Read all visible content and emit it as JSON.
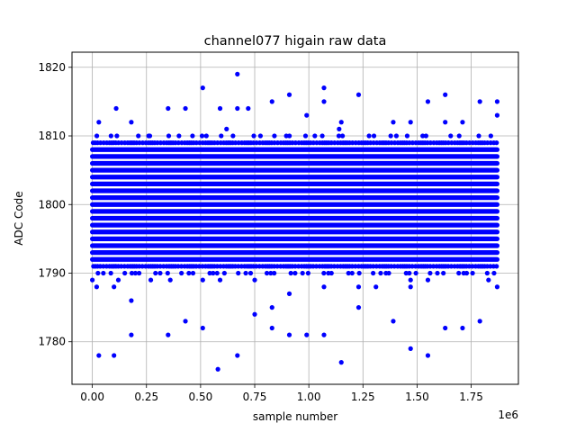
{
  "chart_data": {
    "type": "scatter",
    "title": "channel077 higain raw data",
    "xlabel": "sample number",
    "ylabel": "ADC Code",
    "x_offset_text": "1e6",
    "xlim": [
      -0.094,
      1.968
    ],
    "ylim": [
      1773.8,
      1822.2
    ],
    "x_scale_factor": 1000000,
    "xticks": [
      0.0,
      0.25,
      0.5,
      0.75,
      1.0,
      1.25,
      1.5,
      1.75
    ],
    "xtick_labels": [
      "0.00",
      "0.25",
      "0.50",
      "0.75",
      "1.00",
      "1.25",
      "1.50",
      "1.75"
    ],
    "yticks": [
      1780,
      1790,
      1800,
      1810,
      1820
    ],
    "ytick_labels": [
      "1780",
      "1790",
      "1800",
      "1810",
      "1820"
    ],
    "grid": true,
    "marker_color": "#0000ff",
    "dense_band": {
      "x_range": [
        0.0,
        1.87
      ],
      "y_range": [
        1792,
        1808
      ]
    },
    "sparse_rows": [
      {
        "y": 1809,
        "x_range": [
          0.0,
          1.87
        ]
      },
      {
        "y": 1791,
        "x_range": [
          0.0,
          1.87
        ]
      },
      {
        "y": 1790,
        "x_range": [
          0.0,
          1.87
        ]
      },
      {
        "y": 1810,
        "x_range": [
          0.0,
          1.87
        ]
      }
    ],
    "series": [
      {
        "values": [
          [
            0.03,
            1812
          ],
          [
            0.11,
            1814
          ],
          [
            0.18,
            1812
          ],
          [
            0.35,
            1814
          ],
          [
            0.43,
            1814
          ],
          [
            0.51,
            1817
          ],
          [
            0.59,
            1814
          ],
          [
            0.67,
            1819
          ],
          [
            0.67,
            1814
          ],
          [
            0.72,
            1814
          ],
          [
            0.83,
            1815
          ],
          [
            0.91,
            1816
          ],
          [
            0.99,
            1813
          ],
          [
            1.07,
            1817
          ],
          [
            1.07,
            1815
          ],
          [
            1.15,
            1812
          ],
          [
            1.23,
            1816
          ],
          [
            1.39,
            1812
          ],
          [
            1.47,
            1812
          ],
          [
            1.55,
            1815
          ],
          [
            1.63,
            1816
          ],
          [
            1.63,
            1812
          ],
          [
            1.71,
            1812
          ],
          [
            1.79,
            1815
          ],
          [
            1.87,
            1815
          ],
          [
            1.87,
            1813
          ],
          [
            0.26,
            1810
          ],
          [
            0.62,
            1811
          ],
          [
            1.14,
            1811
          ],
          [
            0.0,
            1789
          ],
          [
            0.02,
            1788
          ],
          [
            0.1,
            1788
          ],
          [
            0.12,
            1789
          ],
          [
            0.18,
            1786
          ],
          [
            0.27,
            1789
          ],
          [
            0.36,
            1789
          ],
          [
            0.51,
            1789
          ],
          [
            0.59,
            1789
          ],
          [
            0.75,
            1789
          ],
          [
            0.91,
            1787
          ],
          [
            1.07,
            1788
          ],
          [
            1.23,
            1788
          ],
          [
            1.31,
            1788
          ],
          [
            1.47,
            1788
          ],
          [
            1.47,
            1789
          ],
          [
            1.55,
            1789
          ],
          [
            1.83,
            1789
          ],
          [
            1.87,
            1788
          ],
          [
            0.03,
            1778
          ],
          [
            0.1,
            1778
          ],
          [
            0.18,
            1781
          ],
          [
            0.35,
            1781
          ],
          [
            0.43,
            1783
          ],
          [
            0.51,
            1782
          ],
          [
            0.58,
            1776
          ],
          [
            0.67,
            1778
          ],
          [
            0.75,
            1784
          ],
          [
            0.83,
            1785
          ],
          [
            0.83,
            1782
          ],
          [
            0.91,
            1781
          ],
          [
            0.99,
            1781
          ],
          [
            1.07,
            1781
          ],
          [
            1.15,
            1777
          ],
          [
            1.23,
            1785
          ],
          [
            1.39,
            1783
          ],
          [
            1.47,
            1779
          ],
          [
            1.55,
            1778
          ],
          [
            1.63,
            1782
          ],
          [
            1.71,
            1782
          ],
          [
            1.79,
            1783
          ]
        ]
      }
    ]
  }
}
